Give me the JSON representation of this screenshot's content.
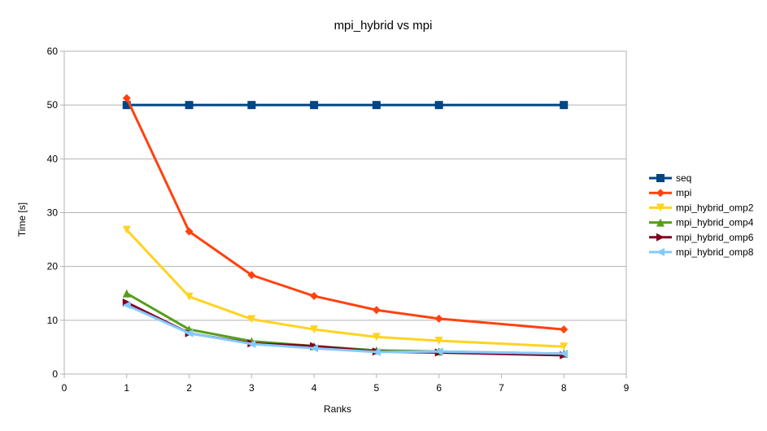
{
  "chart_data": {
    "type": "line",
    "title": "mpi_hybrid vs mpi",
    "xlabel": "Ranks",
    "ylabel": "Time [s]",
    "xlim": [
      0,
      9
    ],
    "ylim": [
      0,
      60
    ],
    "xticks": [
      0,
      1,
      2,
      3,
      4,
      5,
      6,
      7,
      8,
      9
    ],
    "yticks": [
      0,
      10,
      20,
      30,
      40,
      50,
      60
    ],
    "grid": "horizontal",
    "legend": "right",
    "x": [
      1,
      2,
      3,
      4,
      5,
      6,
      8
    ],
    "series": [
      {
        "name": "seq",
        "color": "#004586",
        "marker": "square",
        "values": [
          50,
          50,
          50,
          50,
          50,
          50,
          50
        ]
      },
      {
        "name": "mpi",
        "color": "#ff420e",
        "marker": "diamond",
        "values": [
          51.3,
          26.5,
          18.4,
          14.5,
          11.9,
          10.3,
          8.3
        ]
      },
      {
        "name": "mpi_hybrid_omp2",
        "color": "#ffd320",
        "marker": "triangle-down",
        "values": [
          26.8,
          14.4,
          10.2,
          8.3,
          6.9,
          6.2,
          5.1
        ]
      },
      {
        "name": "mpi_hybrid_omp4",
        "color": "#579d1c",
        "marker": "triangle-up",
        "values": [
          15.0,
          8.3,
          6.1,
          5.2,
          4.4,
          4.2,
          3.8
        ]
      },
      {
        "name": "mpi_hybrid_omp6",
        "color": "#7e0021",
        "marker": "triangle-right",
        "values": [
          13.3,
          7.6,
          5.7,
          5.2,
          4.2,
          4.0,
          3.5
        ]
      },
      {
        "name": "mpi_hybrid_omp8",
        "color": "#83caff",
        "marker": "triangle-left",
        "values": [
          12.8,
          7.6,
          5.6,
          4.8,
          4.1,
          4.2,
          3.8
        ]
      }
    ]
  }
}
